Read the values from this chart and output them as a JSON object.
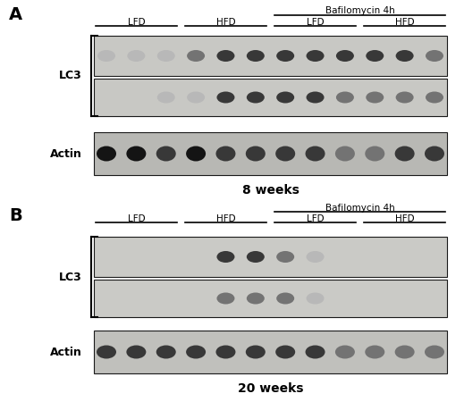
{
  "bg": "#ffffff",
  "panel_A": "A",
  "panel_B": "B",
  "weeks_A": "8 weeks",
  "weeks_B": "20 weeks",
  "lc3_label": "LC3",
  "actin_label": "Actin",
  "bafilo_label": "Bafilomycin 4h",
  "box_bg_lc3_A": "#c8c8c4",
  "box_bg_actin_A": "#b8b8b4",
  "box_bg_lc3_B": "#cacac6",
  "box_bg_actin_B": "#c0c0bc",
  "lane_count": 12,
  "A_lc3_top": [
    1,
    1,
    1,
    2,
    3,
    3,
    3,
    3,
    3,
    3,
    3,
    2
  ],
  "A_lc3_bot": [
    0,
    0,
    1,
    1,
    3,
    3,
    3,
    3,
    2,
    2,
    2,
    2
  ],
  "A_actin": [
    4,
    4,
    3,
    4,
    3,
    3,
    3,
    3,
    2,
    2,
    3,
    3
  ],
  "B_lc3_top": [
    0,
    0,
    0,
    0,
    3,
    3,
    2,
    1,
    0,
    0,
    0,
    0
  ],
  "B_lc3_bot": [
    0,
    0,
    0,
    0,
    2,
    2,
    2,
    1,
    0,
    0,
    0,
    0
  ],
  "B_actin": [
    3,
    3,
    3,
    3,
    3,
    3,
    3,
    3,
    2,
    2,
    2,
    2
  ]
}
